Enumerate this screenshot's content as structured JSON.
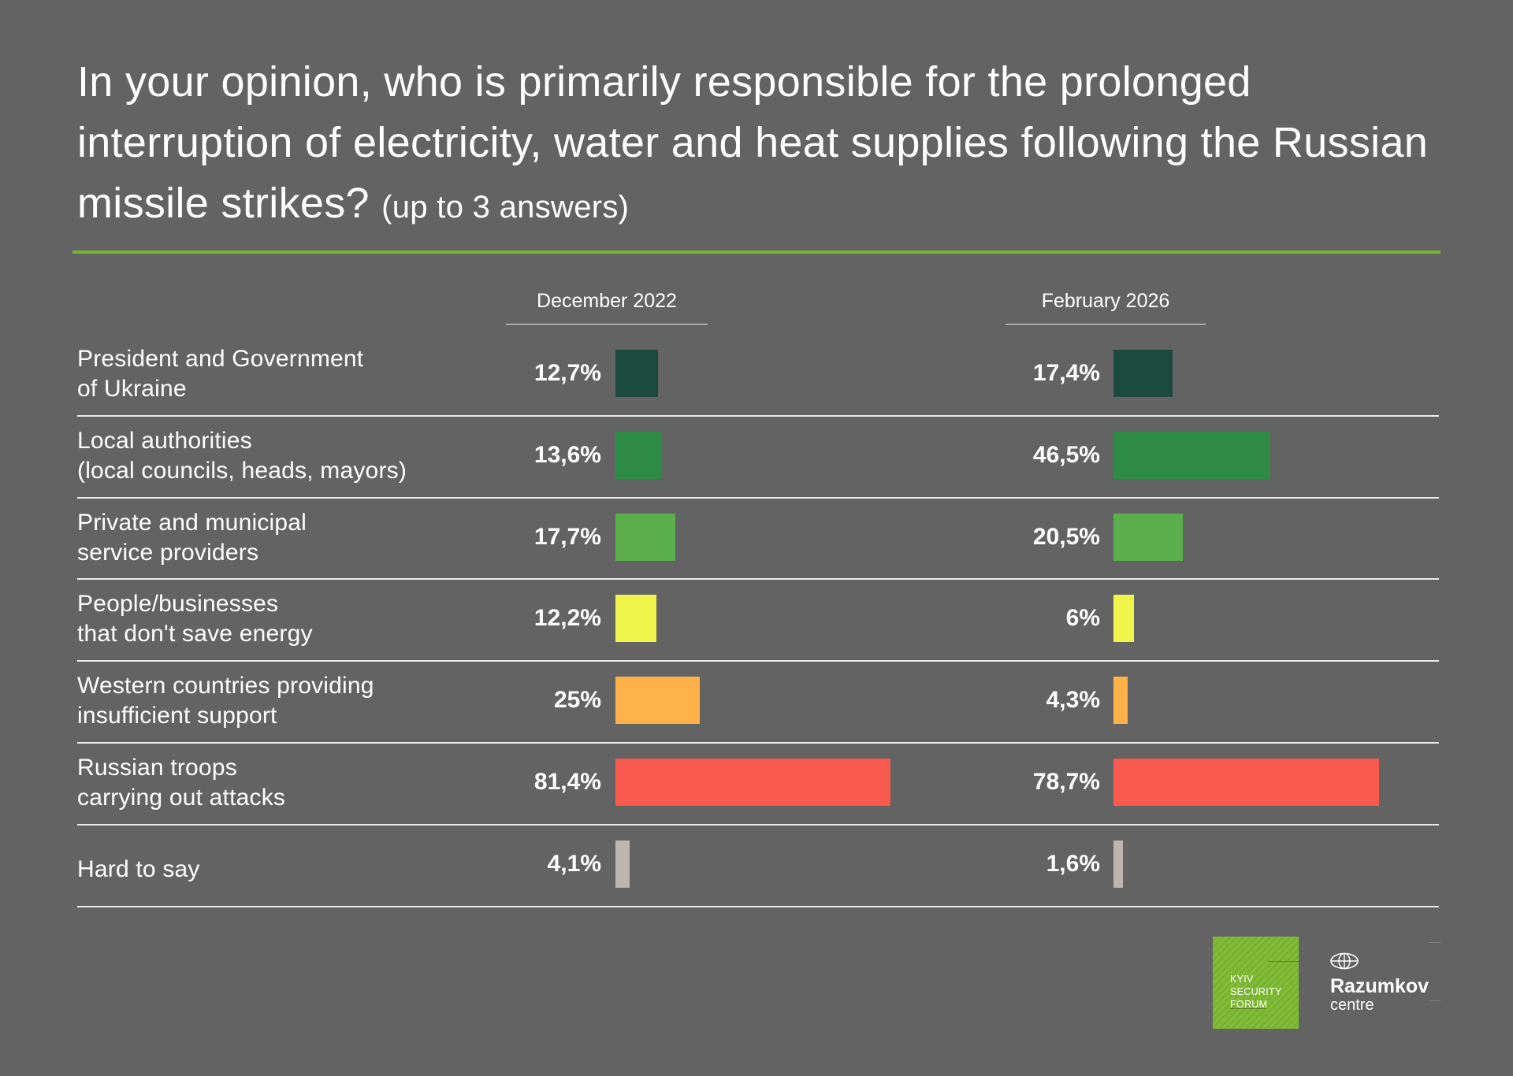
{
  "header": {
    "title": "In your opinion, who is primarily responsible for the prolonged interruption of electricity, water and heat supplies following the Russian missile strikes?",
    "subtitle": "(up to 3 answers)"
  },
  "chart_data": {
    "type": "bar",
    "orientation": "horizontal",
    "unit": "%",
    "categories": [
      "President and Government\nof Ukraine",
      "Local authorities\n(local councils, heads, mayors)",
      "Private and municipal\nservice providers",
      "People/businesses\nthat don't save energy",
      "Western countries providing\ninsufficient support",
      "Russian troops\ncarrying out attacks",
      "Hard to say"
    ],
    "colors": [
      "#1d4a3e",
      "#2e8b45",
      "#5aaf4c",
      "#f0f54c",
      "#ffb24a",
      "#f85a4d",
      "#beb5b0"
    ],
    "series": [
      {
        "name": "December 2022",
        "values": [
          12.7,
          13.6,
          17.7,
          12.2,
          25,
          81.4,
          4.1
        ],
        "labels": [
          "12,7%",
          "13,6%",
          "17,7%",
          "12,2%",
          "25%",
          "81,4%",
          "4,1%"
        ]
      },
      {
        "name": "February 2026",
        "values": [
          17.4,
          46.5,
          20.5,
          6,
          4.3,
          78.7,
          1.6
        ],
        "labels": [
          "17,4%",
          "46,5%",
          "20,5%",
          "6%",
          "4,3%",
          "78,7%",
          "1,6%"
        ]
      }
    ],
    "xlim": [
      0,
      100
    ],
    "grid": false,
    "legend": "column headers at top"
  },
  "logos": {
    "ksf_text": "KYIV\nSECURITY\nFORUM",
    "ksf_color": "#78b52d",
    "razumkov_icon": "globe-icon",
    "razumkov_name": "Razumkov",
    "razumkov_sub": "centre"
  },
  "colors": {
    "background": "#636363",
    "accent_line": "#74b72e",
    "text": "#ffffff"
  }
}
